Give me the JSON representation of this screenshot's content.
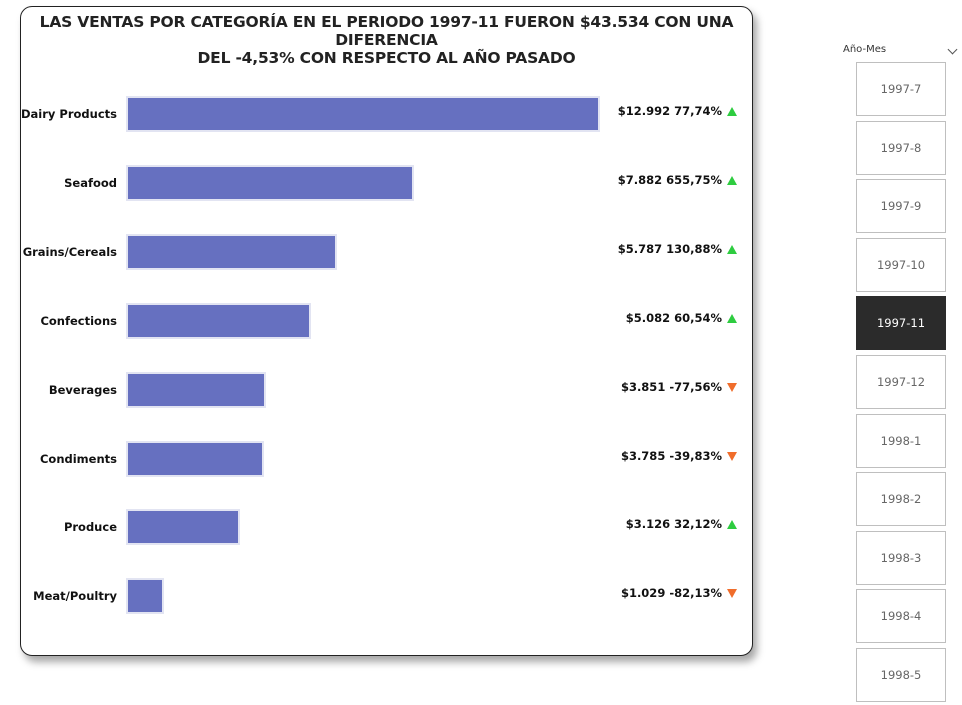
{
  "chart_data": {
    "type": "bar",
    "orientation": "horizontal",
    "title_lines": [
      "LAS VENTAS POR CATEGORÍA EN EL PERIODO 1997-11 FUERON $43.534 CON UNA DIFERENCIA",
      "DEL -4,53% CON RESPECTO AL AÑO PASADO"
    ],
    "categories": [
      "Dairy Products",
      "Seafood",
      "Grains/Cereals",
      "Confections",
      "Beverages",
      "Condiments",
      "Produce",
      "Meat/Poultry"
    ],
    "values": [
      12992,
      7882,
      5787,
      5082,
      3851,
      3785,
      3126,
      1029
    ],
    "labels": [
      "$12.992 77,74%",
      "$7.882 655,75%",
      "$5.787 130,88%",
      "$5.082 60,54%",
      "$3.851 -77,56%",
      "$3.785 -39,83%",
      "$3.126 32,12%",
      "$1.029 -82,13%"
    ],
    "change_pct": [
      77.74,
      655.75,
      130.88,
      60.54,
      -77.56,
      -39.83,
      32.12,
      -82.13
    ],
    "trend": [
      "up",
      "up",
      "up",
      "up",
      "down",
      "down",
      "up",
      "down"
    ],
    "bar_color": "#6670c0",
    "up_color": "#2ecc40",
    "down_color": "#f06d2b",
    "xlim": [
      0,
      12992
    ],
    "grid": false
  },
  "slicer": {
    "title": "Año-Mes",
    "items": [
      "1997-7",
      "1997-8",
      "1997-9",
      "1997-10",
      "1997-11",
      "1997-12",
      "1998-1",
      "1998-2",
      "1998-3",
      "1998-4",
      "1998-5"
    ],
    "selected": "1997-11",
    "selected_color": "#2b2b2b"
  }
}
